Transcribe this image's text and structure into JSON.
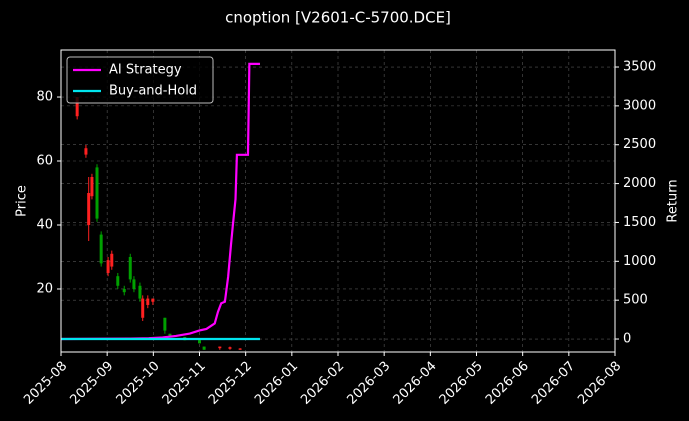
{
  "chart_data": {
    "type": "candlestick_with_lines",
    "title": "cnoption [V2601-C-5700.DCE]",
    "ylabel": "Price",
    "y2label": "Return",
    "xlim": [
      0,
      12
    ],
    "xticks": [
      {
        "value": 0,
        "label": "2025-08"
      },
      {
        "value": 1,
        "label": "2025-09"
      },
      {
        "value": 2,
        "label": "2025-10"
      },
      {
        "value": 3,
        "label": "2025-11"
      },
      {
        "value": 4,
        "label": "2025-12"
      },
      {
        "value": 5,
        "label": "2026-01"
      },
      {
        "value": 6,
        "label": "2026-02"
      },
      {
        "value": 7,
        "label": "2026-03"
      },
      {
        "value": 8,
        "label": "2026-04"
      },
      {
        "value": 9,
        "label": "2026-05"
      },
      {
        "value": 10,
        "label": "2026-06"
      },
      {
        "value": 11,
        "label": "2026-07"
      },
      {
        "value": 12,
        "label": "2026-08"
      }
    ],
    "ylim": [
      0.3,
      94.7
    ],
    "yticks": [
      20,
      40,
      60,
      80
    ],
    "y2lim": [
      -167,
      3719
    ],
    "y2ticks": [
      0,
      500,
      1000,
      1500,
      2000,
      2500,
      3000,
      3500
    ],
    "grid": true,
    "legend": "upper left",
    "up_color": "#00a000",
    "down_color": "#ff2020",
    "candles": {
      "x": [
        0.35,
        0.54,
        0.6,
        0.67,
        0.78,
        0.87,
        1.02,
        1.1,
        1.23,
        1.37,
        1.5,
        1.58,
        1.71,
        1.77,
        1.88,
        1.99,
        2.25,
        2.36,
        2.68,
        3.0,
        3.1,
        3.44,
        3.66,
        3.88
      ],
      "open": [
        80,
        64,
        50,
        55,
        42,
        28,
        29,
        31,
        21,
        19,
        23,
        20,
        17,
        17,
        17,
        17,
        7,
        5,
        4,
        3,
        1,
        2,
        1.8,
        1.4
      ],
      "high": [
        80,
        65,
        55,
        56,
        59,
        38,
        30,
        32,
        25,
        21,
        31,
        24,
        22,
        18,
        18,
        17,
        11,
        6,
        5,
        4,
        2,
        2,
        2,
        1.5
      ],
      "low": [
        73,
        61,
        35,
        48,
        41,
        27,
        24,
        26,
        20,
        18,
        22,
        19,
        16,
        10,
        14,
        15,
        6,
        5,
        4,
        3,
        1,
        1,
        1,
        1
      ],
      "close": [
        74,
        62,
        40,
        49,
        58,
        37,
        25,
        27,
        24,
        20,
        30,
        23,
        21,
        11,
        15,
        16,
        11,
        6,
        5,
        4,
        2,
        1.5,
        1.3,
        1
      ]
    },
    "series": [
      {
        "name": "AI Strategy",
        "color": "#ff00ff",
        "axis": "y2",
        "x": [
          0,
          1.5,
          1.9,
          2.2,
          2.49,
          2.79,
          3.0,
          3.15,
          3.33,
          3.4,
          3.47,
          3.55,
          3.62,
          3.68,
          3.72,
          3.78,
          3.81,
          4.05,
          4.08,
          4.31
        ],
        "values": [
          0,
          5,
          10,
          20,
          40,
          70,
          110,
          130,
          200,
          350,
          460,
          480,
          800,
          1200,
          1450,
          1800,
          2370,
          2370,
          3540,
          3540
        ]
      },
      {
        "name": "Buy-and-Hold",
        "color": "#00e5ee",
        "axis": "y2",
        "x": [
          0,
          4.31
        ],
        "values": [
          0,
          0
        ]
      }
    ]
  }
}
